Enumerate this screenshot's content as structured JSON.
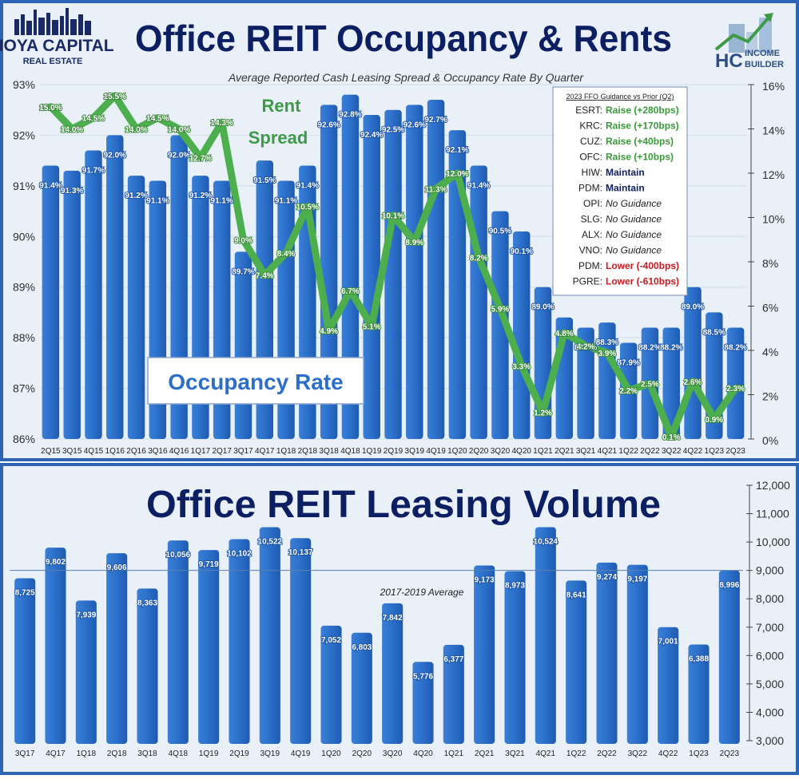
{
  "logos": {
    "hoya": {
      "line1": "HOYA CAPITAL",
      "line2": "REAL ESTATE"
    },
    "hc": {
      "mark": "HC",
      "line1": "INCOME",
      "line2": "BUILDER"
    }
  },
  "colors": {
    "bar": "#2b6fca",
    "line": "#4cae4c",
    "title": "#0d1f63",
    "border": "#2f63b5",
    "raise": "#3a9a3a",
    "lower": "#cc1a1a",
    "maintain": "#0d1f63"
  },
  "chart_data": [
    {
      "type": "bar+line",
      "title": "Office REIT Occupancy & Rents",
      "subtitle": "Average Reported Cash Leasing Spread & Occupancy Rate By Quarter",
      "categories": [
        "2Q15",
        "3Q15",
        "4Q15",
        "1Q16",
        "2Q16",
        "3Q16",
        "4Q16",
        "1Q17",
        "2Q17",
        "3Q17",
        "4Q17",
        "1Q18",
        "2Q18",
        "3Q18",
        "4Q18",
        "1Q19",
        "2Q19",
        "3Q19",
        "4Q19",
        "1Q20",
        "2Q20",
        "3Q20",
        "4Q20",
        "1Q21",
        "2Q21",
        "3Q21",
        "4Q21",
        "1Q22",
        "2Q22",
        "3Q22",
        "4Q22",
        "1Q23",
        "2Q23"
      ],
      "series": [
        {
          "name": "Occupancy Rate",
          "axis": "left",
          "type": "bar",
          "values": [
            91.4,
            91.3,
            91.7,
            92.0,
            91.2,
            91.1,
            92.0,
            91.2,
            91.1,
            89.7,
            91.5,
            91.1,
            91.4,
            92.6,
            92.8,
            92.4,
            92.5,
            92.6,
            92.7,
            92.1,
            91.4,
            90.5,
            90.1,
            89.0,
            88.4,
            88.2,
            88.3,
            87.9,
            88.2,
            88.2,
            89.0,
            88.5,
            88.2
          ],
          "labels": [
            "91.4%",
            "91.3%",
            "91.7%",
            "92.0%",
            "91.2%",
            "91.1%",
            "92.0%",
            "91.2%",
            "91.1%",
            "89.7%",
            "91.5%",
            "91.1%",
            "91.4%",
            "92.6%",
            "92.8%",
            "92.4%",
            "92.5%",
            "92.6%",
            "92.7%",
            "92.1%",
            "91.4%",
            "90.5%",
            "90.1%",
            "89.0%",
            "",
            "88.2%",
            "88.3%",
            "87.9%",
            "88.2%",
            "88.2%",
            "89.0%",
            "88.5%",
            "88.2%"
          ]
        },
        {
          "name": "Rent Spread",
          "axis": "right",
          "type": "line",
          "values": [
            15.0,
            14.0,
            14.5,
            15.5,
            14.0,
            14.5,
            14.0,
            12.7,
            14.3,
            9.0,
            7.4,
            8.4,
            10.5,
            4.9,
            6.7,
            5.1,
            10.1,
            8.9,
            11.3,
            12.0,
            8.2,
            5.9,
            3.3,
            1.2,
            4.8,
            4.2,
            3.9,
            2.2,
            2.5,
            0.1,
            2.6,
            0.9,
            2.3
          ],
          "labels": [
            "15.0%",
            "14.0%",
            "14.5%",
            "15.5%",
            "14.0%",
            "14.5%",
            "14.0%",
            "12.7%",
            "14.3%",
            "9.0%",
            "7.4%",
            "8.4%",
            "10.5%",
            "4.9%",
            "6.7%",
            "5.1%",
            "10.1%",
            "8.9%",
            "11.3%",
            "12.0%",
            "8.2%",
            "5.9%",
            "3.3%",
            "1.2%",
            "4.8%",
            "4.2%",
            "3.9%",
            "2.2%",
            "2.5%",
            "0.1%",
            "2.6%",
            "0.9%",
            "2.3%"
          ]
        }
      ],
      "left_axis": {
        "range": [
          86,
          93
        ],
        "ticks": [
          "86%",
          "87%",
          "88%",
          "89%",
          "90%",
          "91%",
          "92%",
          "93%"
        ]
      },
      "right_axis": {
        "range": [
          0,
          16
        ],
        "ticks": [
          "0%",
          "2%",
          "4%",
          "6%",
          "8%",
          "10%",
          "12%",
          "14%",
          "16%"
        ]
      },
      "annotations": {
        "rent_line1": "Rent",
        "rent_line2": "Spread",
        "occupancy_box": "Occupancy Rate"
      },
      "guidance_table": {
        "title": "2023 FFO Guidance vs Prior (Q2)",
        "rows": [
          {
            "ticker": "ESRT:",
            "text": "Raise (+280bps)",
            "kind": "raise"
          },
          {
            "ticker": "KRC:",
            "text": "Raise (+170bps)",
            "kind": "raise"
          },
          {
            "ticker": "CUZ:",
            "text": "Raise (+40bps)",
            "kind": "raise"
          },
          {
            "ticker": "OFC:",
            "text": "Raise (+10bps)",
            "kind": "raise"
          },
          {
            "ticker": "HIW:",
            "text": "Maintain",
            "kind": "maintain"
          },
          {
            "ticker": "PDM:",
            "text": "Maintain",
            "kind": "maintain"
          },
          {
            "ticker": "OPI:",
            "text": "No Guidance",
            "kind": "none"
          },
          {
            "ticker": "SLG:",
            "text": "No Guidance",
            "kind": "none"
          },
          {
            "ticker": "ALX:",
            "text": "No Guidance",
            "kind": "none"
          },
          {
            "ticker": "VNO:",
            "text": "No Guidance",
            "kind": "none"
          },
          {
            "ticker": "PDM:",
            "text": "Lower (-400bps)",
            "kind": "lower"
          },
          {
            "ticker": "PGRE:",
            "text": "Lower (-610bps)",
            "kind": "lower"
          }
        ]
      }
    },
    {
      "type": "bar",
      "title": "Office REIT Leasing Volume",
      "categories": [
        "3Q17",
        "4Q17",
        "1Q18",
        "2Q18",
        "3Q18",
        "4Q18",
        "1Q19",
        "2Q19",
        "3Q19",
        "4Q19",
        "1Q20",
        "2Q20",
        "3Q20",
        "4Q20",
        "1Q21",
        "2Q21",
        "3Q21",
        "4Q21",
        "1Q22",
        "2Q22",
        "3Q22",
        "4Q22",
        "1Q23",
        "2Q23"
      ],
      "values": [
        8725,
        9802,
        7939,
        9606,
        8363,
        10056,
        9719,
        10102,
        10522,
        10137,
        7052,
        6803,
        7842,
        5776,
        6377,
        9173,
        8973,
        10524,
        8641,
        9274,
        9197,
        7001,
        6388,
        8996
      ],
      "labels": [
        "8,725",
        "9,802",
        "7,939",
        "9,606",
        "8,363",
        "10,056",
        "9,719",
        "10,102",
        "10,522",
        "10,137",
        "7,052",
        "6,803",
        "7,842",
        "5,776",
        "6,377",
        "9,173",
        "8,973",
        "10,524",
        "8,641",
        "9,274",
        "9,197",
        "7,001",
        "6,388",
        "8,996"
      ],
      "y_axis": {
        "range": [
          3000,
          12000
        ],
        "ticks": [
          "3,000",
          "4,000",
          "5,000",
          "6,000",
          "7,000",
          "8,000",
          "9,000",
          "10,000",
          "11,000",
          "12,000"
        ]
      },
      "reference_line": {
        "label": "2017-2019 Average",
        "value": 9000
      }
    }
  ]
}
